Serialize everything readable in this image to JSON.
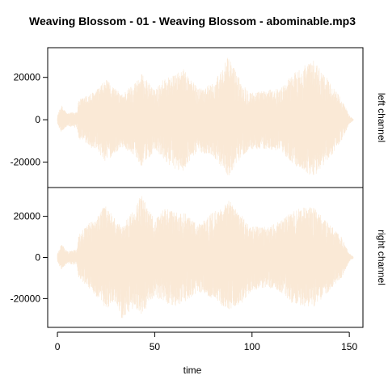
{
  "chart_data": {
    "type": "area",
    "title": "Weaving Blossom - 01 - Weaving Blossom - abominable.mp3",
    "xlabel": "time",
    "xlim": [
      -5,
      157
    ],
    "x_ticks": [
      0,
      50,
      100,
      150
    ],
    "x_tick_labels": [
      "0",
      "50",
      "100",
      "150"
    ],
    "fill_color": "#FAE9D6",
    "grid": false,
    "panels": [
      {
        "name": "left channel",
        "ylim": [
          -32000,
          34000
        ],
        "y_ticks": [
          20000,
          0,
          -20000
        ],
        "y_tick_labels": [
          "20000",
          "0",
          "-20000"
        ],
        "envelope": [
          {
            "t": 0,
            "max": 2000,
            "min": -2000
          },
          {
            "t": 2,
            "max": 7000,
            "min": -6000
          },
          {
            "t": 5,
            "max": 3000,
            "min": -3000
          },
          {
            "t": 10,
            "max": 4000,
            "min": -4000
          },
          {
            "t": 11,
            "max": 9500,
            "min": -9000
          },
          {
            "t": 20,
            "max": 14000,
            "min": -15000
          },
          {
            "t": 25,
            "max": 19000,
            "min": -20000
          },
          {
            "t": 33,
            "max": 12000,
            "min": -13000
          },
          {
            "t": 40,
            "max": 18000,
            "min": -17000
          },
          {
            "t": 43,
            "max": 22000,
            "min": -22000
          },
          {
            "t": 50,
            "max": 14000,
            "min": -15000
          },
          {
            "t": 55,
            "max": 20000,
            "min": -19000
          },
          {
            "t": 60,
            "max": 21000,
            "min": -24000
          },
          {
            "t": 65,
            "max": 24000,
            "min": -24000
          },
          {
            "t": 72,
            "max": 15000,
            "min": -15000
          },
          {
            "t": 80,
            "max": 17000,
            "min": -17000
          },
          {
            "t": 88,
            "max": 30000,
            "min": -27000
          },
          {
            "t": 95,
            "max": 17000,
            "min": -17000
          },
          {
            "t": 100,
            "max": 13000,
            "min": -14000
          },
          {
            "t": 108,
            "max": 14000,
            "min": -14000
          },
          {
            "t": 115,
            "max": 15000,
            "min": -15000
          },
          {
            "t": 120,
            "max": 21000,
            "min": -20000
          },
          {
            "t": 127,
            "max": 26000,
            "min": -25000
          },
          {
            "t": 132,
            "max": 28000,
            "min": -27000
          },
          {
            "t": 140,
            "max": 18000,
            "min": -18000
          },
          {
            "t": 146,
            "max": 10000,
            "min": -10000
          },
          {
            "t": 150,
            "max": 2000,
            "min": -2000
          },
          {
            "t": 152,
            "max": 500,
            "min": -500
          }
        ]
      },
      {
        "name": "right channel",
        "ylim": [
          -34000,
          34000
        ],
        "y_ticks": [
          20000,
          0,
          -20000
        ],
        "y_tick_labels": [
          "20000",
          "0",
          "-20000"
        ],
        "envelope": [
          {
            "t": 0,
            "max": 2000,
            "min": -2000
          },
          {
            "t": 2,
            "max": 7000,
            "min": -6000
          },
          {
            "t": 5,
            "max": 3000,
            "min": -3000
          },
          {
            "t": 10,
            "max": 4000,
            "min": -4000
          },
          {
            "t": 11,
            "max": 12000,
            "min": -10000
          },
          {
            "t": 20,
            "max": 20000,
            "min": -19000
          },
          {
            "t": 25,
            "max": 26000,
            "min": -25000
          },
          {
            "t": 30,
            "max": 18000,
            "min": -22000
          },
          {
            "t": 33,
            "max": 15000,
            "min": -30000
          },
          {
            "t": 40,
            "max": 24000,
            "min": -24000
          },
          {
            "t": 43,
            "max": 31000,
            "min": -28000
          },
          {
            "t": 50,
            "max": 18000,
            "min": -19000
          },
          {
            "t": 55,
            "max": 24000,
            "min": -22000
          },
          {
            "t": 60,
            "max": 23000,
            "min": -24000
          },
          {
            "t": 65,
            "max": 22000,
            "min": -22000
          },
          {
            "t": 72,
            "max": 16000,
            "min": -17000
          },
          {
            "t": 80,
            "max": 22000,
            "min": -20000
          },
          {
            "t": 88,
            "max": 28000,
            "min": -26000
          },
          {
            "t": 95,
            "max": 20000,
            "min": -22000
          },
          {
            "t": 100,
            "max": 15000,
            "min": -16000
          },
          {
            "t": 108,
            "max": 15000,
            "min": -15000
          },
          {
            "t": 115,
            "max": 18000,
            "min": -17000
          },
          {
            "t": 120,
            "max": 22000,
            "min": -22000
          },
          {
            "t": 127,
            "max": 25000,
            "min": -24000
          },
          {
            "t": 132,
            "max": 24000,
            "min": -24000
          },
          {
            "t": 140,
            "max": 16000,
            "min": -16000
          },
          {
            "t": 146,
            "max": 10000,
            "min": -10000
          },
          {
            "t": 150,
            "max": 2000,
            "min": -2000
          },
          {
            "t": 152,
            "max": 500,
            "min": -500
          }
        ]
      }
    ]
  }
}
